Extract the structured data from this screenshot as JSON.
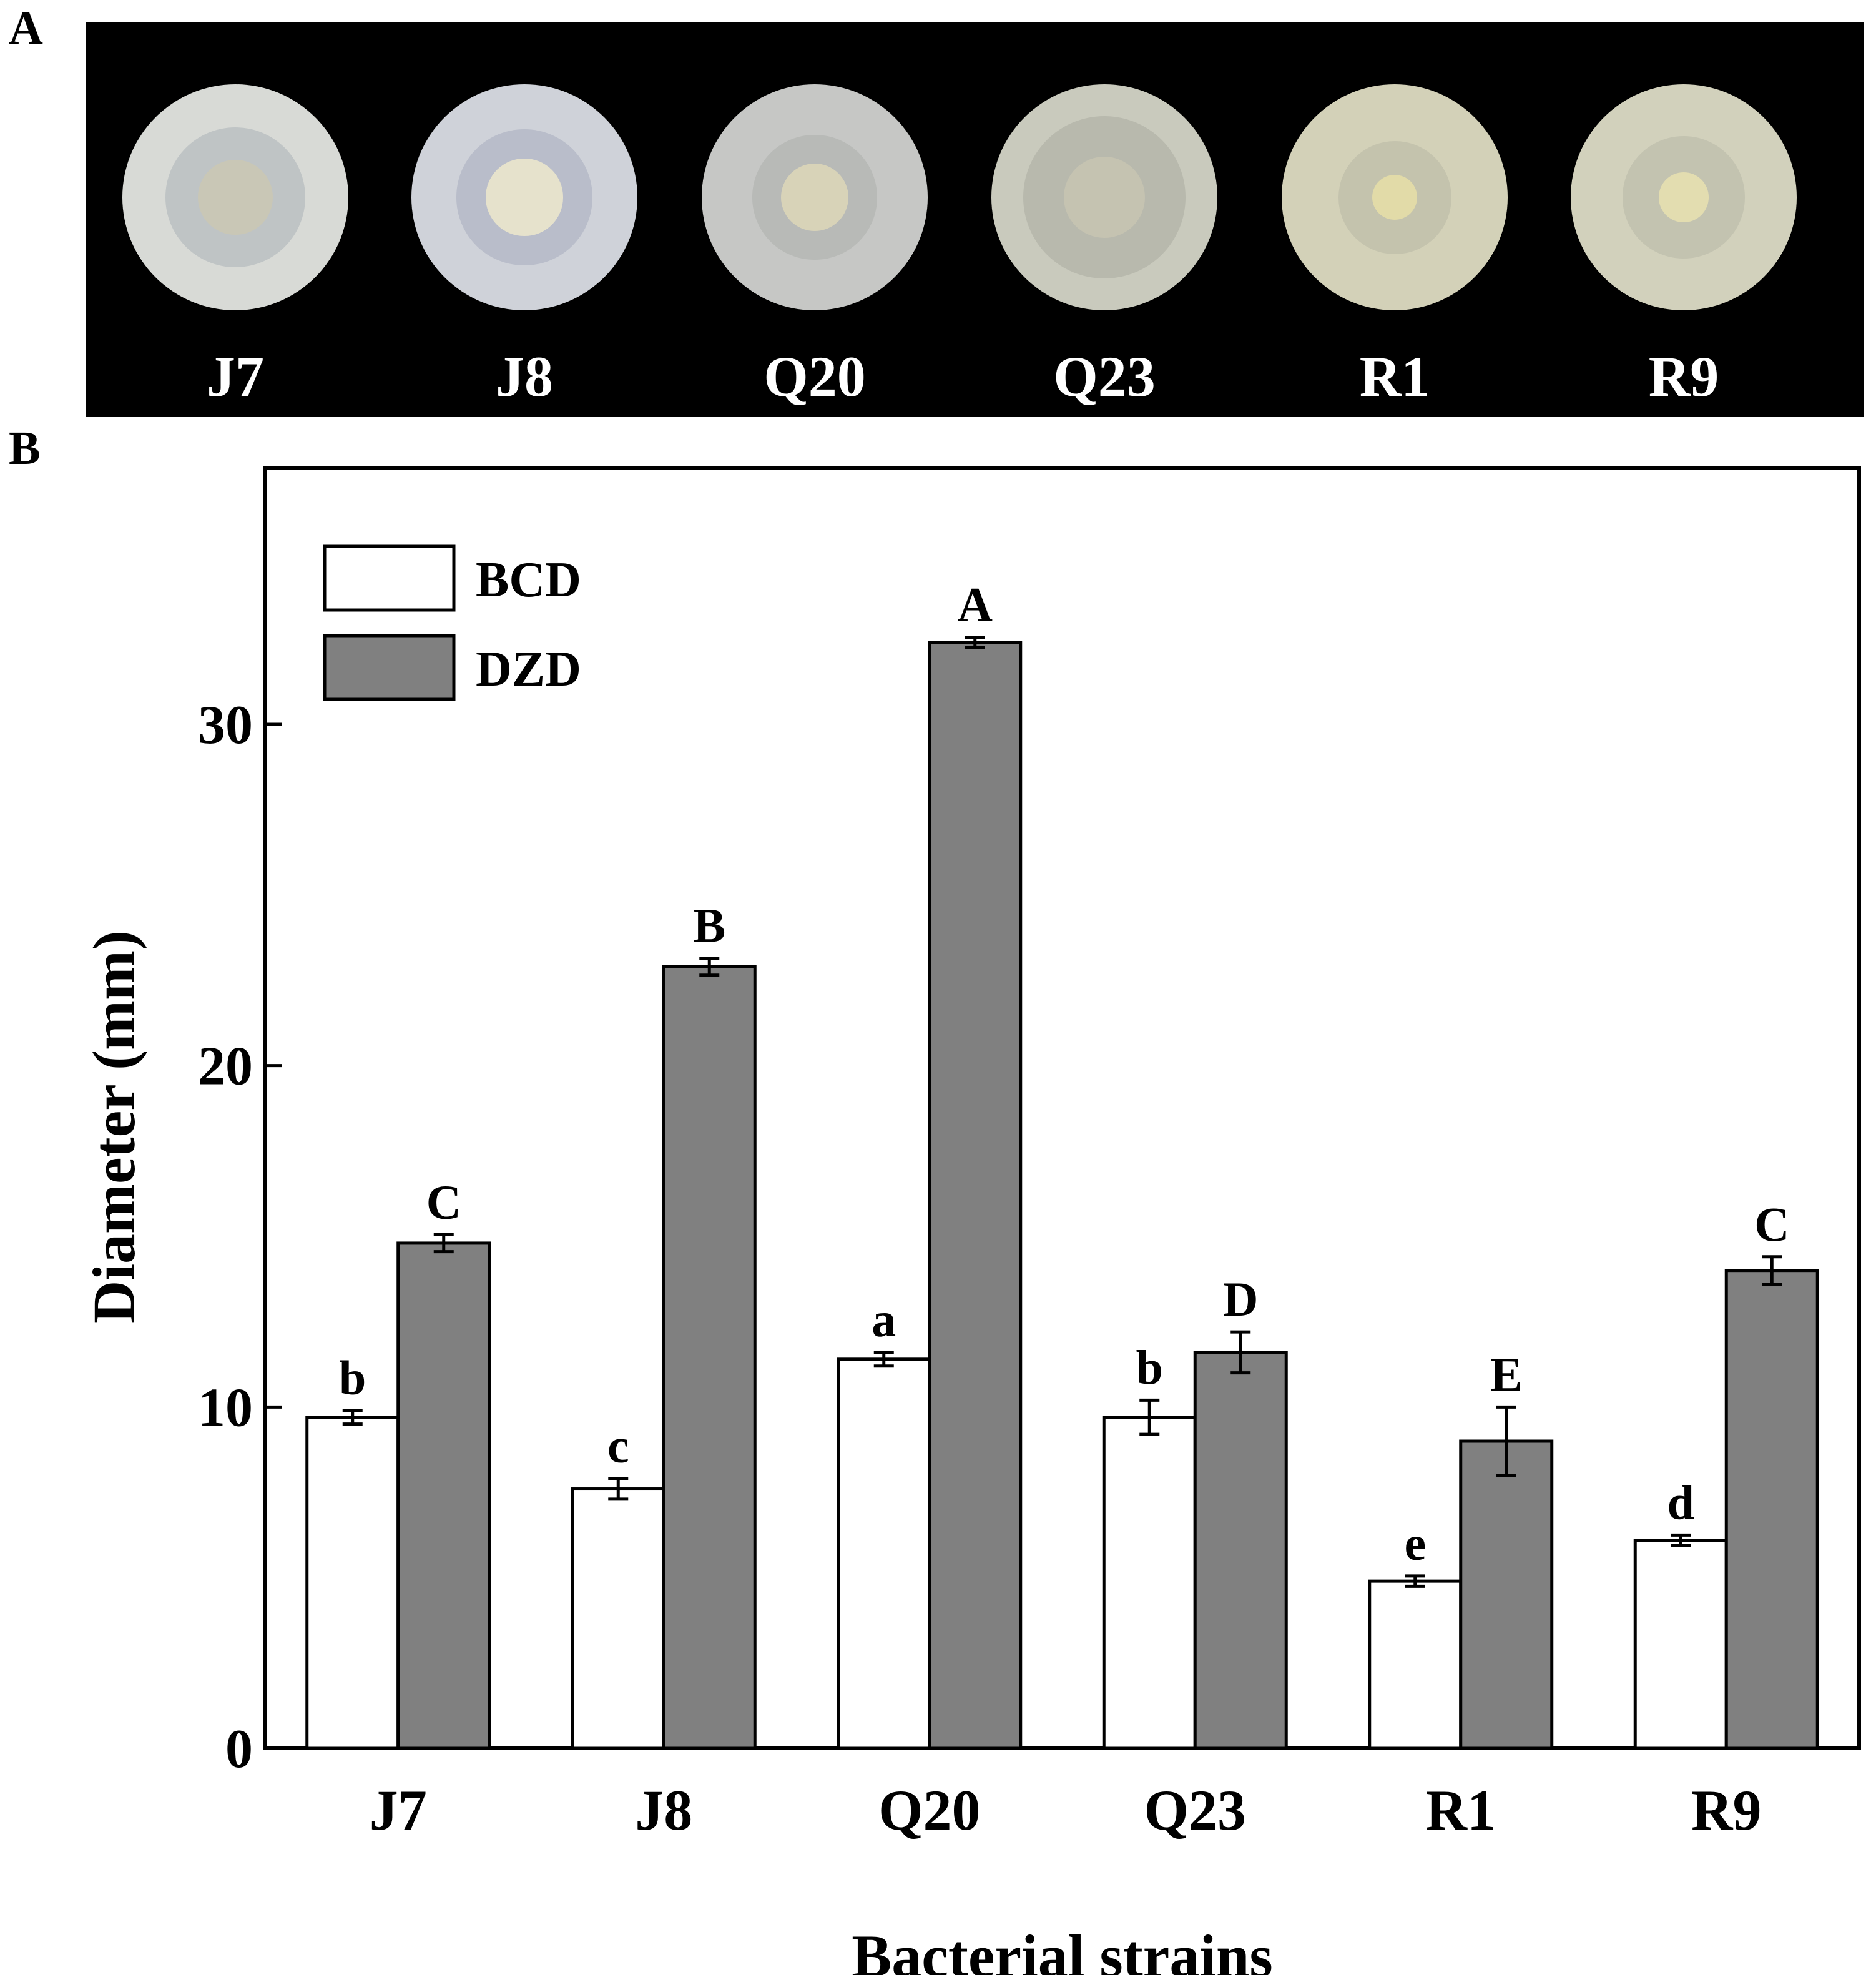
{
  "panels": {
    "a": "A",
    "b": "B"
  },
  "photo": {
    "plates": [
      {
        "label": "J7",
        "plate_color": "#d8dad6",
        "zone_color": "#bfc4c5",
        "colony_color": "#c9c7b6",
        "zone_size": 0.62,
        "colony_size": 0.33
      },
      {
        "label": "J8",
        "plate_color": "#cfd2d9",
        "zone_color": "#b9bdca",
        "colony_color": "#e6e2cc",
        "zone_size": 0.6,
        "colony_size": 0.34
      },
      {
        "label": "Q20",
        "plate_color": "#c6c7c5",
        "zone_color": "#b8bab7",
        "colony_color": "#d8d3b8",
        "zone_size": 0.55,
        "colony_size": 0.3
      },
      {
        "label": "Q23",
        "plate_color": "#c9cabd",
        "zone_color": "#b8b9ad",
        "colony_color": "#c5c3b1",
        "zone_size": 0.72,
        "colony_size": 0.36
      },
      {
        "label": "R1",
        "plate_color": "#d3d1b8",
        "zone_color": "#c4c3ad",
        "colony_color": "#e2dba8",
        "zone_size": 0.5,
        "colony_size": 0.2
      },
      {
        "label": "R9",
        "plate_color": "#d2d1bc",
        "zone_color": "#c3c3b0",
        "colony_color": "#e3ddb0",
        "zone_size": 0.54,
        "colony_size": 0.22
      }
    ]
  },
  "chart_data": {
    "type": "bar",
    "title": "",
    "xlabel": "Bacterial strains",
    "ylabel": "Diameter (mm)",
    "ylim": [
      0,
      37.5
    ],
    "yticks": [
      0,
      10,
      20,
      30
    ],
    "categories": [
      "J7",
      "J8",
      "Q20",
      "Q23",
      "R1",
      "R9"
    ],
    "series": [
      {
        "name": "BCD",
        "color": "#ffffff",
        "values": [
          9.7,
          7.6,
          11.4,
          9.7,
          4.9,
          6.1
        ],
        "errors": [
          0.2,
          0.3,
          0.2,
          0.5,
          0.15,
          0.15
        ],
        "letters": [
          "b",
          "c",
          "a",
          "b",
          "e",
          "d"
        ]
      },
      {
        "name": "DZD",
        "color": "#808080",
        "values": [
          14.8,
          22.9,
          32.4,
          11.6,
          9.0,
          14.0
        ],
        "errors": [
          0.25,
          0.25,
          0.15,
          0.6,
          1.0,
          0.4
        ],
        "letters": [
          "C",
          "B",
          "A",
          "D",
          "E",
          "C"
        ]
      }
    ],
    "legend": "top-left",
    "grid": false
  }
}
